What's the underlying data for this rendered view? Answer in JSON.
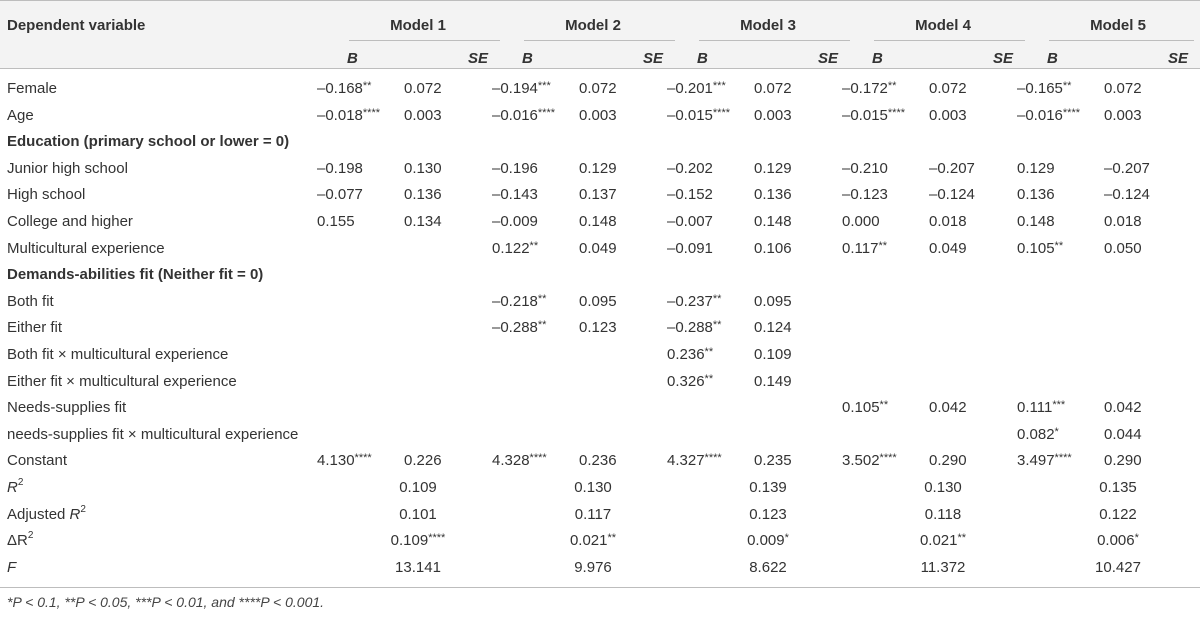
{
  "header": {
    "dependent_variable": "Dependent variable",
    "models": [
      "Model 1",
      "Model 2",
      "Model 3",
      "Model 4",
      "Model 5"
    ],
    "sub": {
      "b": "B",
      "se": "SE"
    }
  },
  "rows": [
    {
      "type": "data",
      "label": "Female",
      "cells": [
        [
          "–0.168",
          "**"
        ],
        [
          "0.072",
          ""
        ],
        [
          "–0.194",
          "***"
        ],
        [
          "0.072",
          ""
        ],
        [
          "–0.201",
          "***"
        ],
        [
          "0.072",
          ""
        ],
        [
          "–0.172",
          "**"
        ],
        [
          "0.072",
          ""
        ],
        [
          "–0.165",
          "**"
        ],
        [
          "0.072",
          ""
        ]
      ]
    },
    {
      "type": "data",
      "label": "Age",
      "cells": [
        [
          "–0.018",
          "****"
        ],
        [
          "0.003",
          ""
        ],
        [
          "–0.016",
          "****"
        ],
        [
          "0.003",
          ""
        ],
        [
          "–0.015",
          "****"
        ],
        [
          "0.003",
          ""
        ],
        [
          "–0.015",
          "****"
        ],
        [
          "0.003",
          ""
        ],
        [
          "–0.016",
          "****"
        ],
        [
          "0.003",
          ""
        ]
      ]
    },
    {
      "type": "section",
      "label": "Education (primary school or lower = 0)"
    },
    {
      "type": "data",
      "label": "Junior high school",
      "cells": [
        [
          "–0.198",
          ""
        ],
        [
          "0.130",
          ""
        ],
        [
          "–0.196",
          ""
        ],
        [
          "0.129",
          ""
        ],
        [
          "–0.202",
          ""
        ],
        [
          "0.129",
          ""
        ],
        [
          "–0.210",
          ""
        ],
        [
          "–0.207",
          ""
        ],
        [
          "0.129",
          ""
        ],
        [
          "–0.207",
          ""
        ]
      ]
    },
    {
      "type": "data",
      "label": "High school",
      "cells": [
        [
          "–0.077",
          ""
        ],
        [
          "0.136",
          ""
        ],
        [
          "–0.143",
          ""
        ],
        [
          "0.137",
          ""
        ],
        [
          "–0.152",
          ""
        ],
        [
          "0.136",
          ""
        ],
        [
          "–0.123",
          ""
        ],
        [
          "–0.124",
          ""
        ],
        [
          "0.136",
          ""
        ],
        [
          "–0.124",
          ""
        ]
      ]
    },
    {
      "type": "data",
      "label": "College and higher",
      "cells": [
        [
          "0.155",
          ""
        ],
        [
          "0.134",
          ""
        ],
        [
          "–0.009",
          ""
        ],
        [
          "0.148",
          ""
        ],
        [
          "–0.007",
          ""
        ],
        [
          "0.148",
          ""
        ],
        [
          "0.000",
          ""
        ],
        [
          "0.018",
          ""
        ],
        [
          "0.148",
          ""
        ],
        [
          "0.018",
          ""
        ]
      ]
    },
    {
      "type": "data",
      "label": "Multicultural experience",
      "cells": [
        [
          "",
          ""
        ],
        [
          "",
          ""
        ],
        [
          "0.122",
          "**"
        ],
        [
          "0.049",
          ""
        ],
        [
          "–0.091",
          ""
        ],
        [
          "0.106",
          ""
        ],
        [
          "0.117",
          "**"
        ],
        [
          "0.049",
          ""
        ],
        [
          "0.105",
          "**"
        ],
        [
          "0.050",
          ""
        ]
      ]
    },
    {
      "type": "section",
      "label": "Demands-abilities fit (Neither fit = 0)"
    },
    {
      "type": "data",
      "label": "Both fit",
      "cells": [
        [
          "",
          ""
        ],
        [
          "",
          ""
        ],
        [
          "–0.218",
          "**"
        ],
        [
          "0.095",
          ""
        ],
        [
          "–0.237",
          "**"
        ],
        [
          "0.095",
          ""
        ],
        [
          "",
          ""
        ],
        [
          "",
          ""
        ],
        [
          "",
          ""
        ],
        [
          "",
          ""
        ]
      ]
    },
    {
      "type": "data",
      "label": "Either fit",
      "cells": [
        [
          "",
          ""
        ],
        [
          "",
          ""
        ],
        [
          "–0.288",
          "**"
        ],
        [
          "0.123",
          ""
        ],
        [
          "–0.288",
          "**"
        ],
        [
          "0.124",
          ""
        ],
        [
          "",
          ""
        ],
        [
          "",
          ""
        ],
        [
          "",
          ""
        ],
        [
          "",
          ""
        ]
      ]
    },
    {
      "type": "data",
      "label": "Both fit × multicultural experience",
      "cells": [
        [
          "",
          ""
        ],
        [
          "",
          ""
        ],
        [
          "",
          ""
        ],
        [
          "",
          ""
        ],
        [
          "0.236",
          "**"
        ],
        [
          "0.109",
          ""
        ],
        [
          "",
          ""
        ],
        [
          "",
          ""
        ],
        [
          "",
          ""
        ],
        [
          "",
          ""
        ]
      ]
    },
    {
      "type": "data",
      "label": "Either fit × multicultural experience",
      "cells": [
        [
          "",
          ""
        ],
        [
          "",
          ""
        ],
        [
          "",
          ""
        ],
        [
          "",
          ""
        ],
        [
          "0.326",
          "**"
        ],
        [
          "0.149",
          ""
        ],
        [
          "",
          ""
        ],
        [
          "",
          ""
        ],
        [
          "",
          ""
        ],
        [
          "",
          ""
        ]
      ]
    },
    {
      "type": "data",
      "label": "Needs-supplies fit",
      "cells": [
        [
          "",
          ""
        ],
        [
          "",
          ""
        ],
        [
          "",
          ""
        ],
        [
          "",
          ""
        ],
        [
          "",
          ""
        ],
        [
          "",
          ""
        ],
        [
          "0.105",
          "**"
        ],
        [
          "0.042",
          ""
        ],
        [
          "0.111",
          "***"
        ],
        [
          "0.042",
          ""
        ]
      ]
    },
    {
      "type": "data",
      "label": "needs-supplies fit × multicultural experience",
      "cells": [
        [
          "",
          ""
        ],
        [
          "",
          ""
        ],
        [
          "",
          ""
        ],
        [
          "",
          ""
        ],
        [
          "",
          ""
        ],
        [
          "",
          ""
        ],
        [
          "",
          ""
        ],
        [
          "",
          ""
        ],
        [
          "0.082",
          "*"
        ],
        [
          "0.044",
          ""
        ]
      ]
    },
    {
      "type": "data",
      "label": "Constant",
      "cells": [
        [
          "4.130",
          "****"
        ],
        [
          "0.226",
          ""
        ],
        [
          "4.328",
          "****"
        ],
        [
          "0.236",
          ""
        ],
        [
          "4.327",
          "****"
        ],
        [
          "0.235",
          ""
        ],
        [
          "3.502",
          "****"
        ],
        [
          "0.290",
          ""
        ],
        [
          "3.497",
          "****"
        ],
        [
          "0.290",
          ""
        ]
      ]
    },
    {
      "type": "stat",
      "label": "R",
      "label_sup": "2",
      "label_italic": true,
      "values": [
        [
          "0.109",
          ""
        ],
        [
          "0.130",
          ""
        ],
        [
          "0.139",
          ""
        ],
        [
          "0.130",
          ""
        ],
        [
          "0.135",
          ""
        ]
      ]
    },
    {
      "type": "stat",
      "label": "Adjusted ",
      "label_italic_part": "R",
      "label_sup": "2",
      "values": [
        [
          "0.101",
          ""
        ],
        [
          "0.117",
          ""
        ],
        [
          "0.123",
          ""
        ],
        [
          "0.118",
          ""
        ],
        [
          "0.122",
          ""
        ]
      ]
    },
    {
      "type": "stat",
      "label": "ΔR",
      "label_sup": "2",
      "values": [
        [
          "0.109",
          "****"
        ],
        [
          "0.021",
          "**"
        ],
        [
          "0.009",
          "*"
        ],
        [
          "0.021",
          "**"
        ],
        [
          "0.006",
          "*"
        ]
      ]
    },
    {
      "type": "stat",
      "label": "F",
      "label_italic": true,
      "values": [
        [
          "13.141",
          ""
        ],
        [
          "9.976",
          ""
        ],
        [
          "8.622",
          ""
        ],
        [
          "11.372",
          ""
        ],
        [
          "10.427",
          ""
        ]
      ]
    }
  ],
  "footnote": "*P < 0.1, **P < 0.05, ***P < 0.01, and ****P < 0.001."
}
